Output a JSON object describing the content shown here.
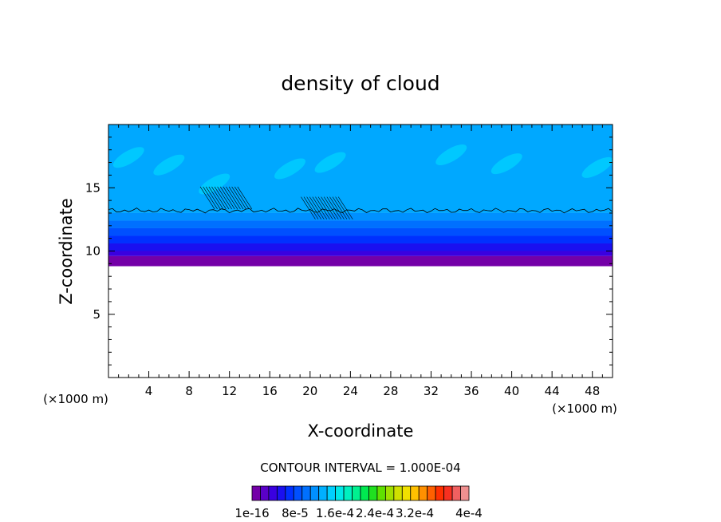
{
  "chart_data": {
    "type": "heatmap",
    "title": "density of cloud",
    "xlabel": "X-coordinate",
    "ylabel": "Z-coordinate",
    "x_unit": "(×1000 m)",
    "y_unit": "(×1000 m)",
    "xlim": [
      0,
      50
    ],
    "ylim": [
      0,
      20
    ],
    "x_ticks": [
      4,
      8,
      12,
      16,
      20,
      24,
      28,
      32,
      36,
      40,
      44,
      48
    ],
    "y_ticks": [
      5,
      10,
      15
    ],
    "contour_interval_label": "CONTOUR INTERVAL = 1.000E-04",
    "colorbar_labels": [
      "1e-16",
      "8e-5",
      "1.6e-4",
      "2.4e-4",
      "3.2e-4",
      "4e-4"
    ],
    "colorbar_colors": [
      "#7400a8",
      "#5a00c8",
      "#3a00e0",
      "#1a10f0",
      "#0030ff",
      "#0050ff",
      "#0070ff",
      "#0090ff",
      "#00b0ff",
      "#00d0ff",
      "#00e8e8",
      "#00f0c0",
      "#00f090",
      "#00e850",
      "#20e020",
      "#60e000",
      "#a0e000",
      "#d0e000",
      "#f0e000",
      "#ffc000",
      "#ff9000",
      "#ff6000",
      "#ff3000",
      "#f83020",
      "#f06060",
      "#f09090"
    ],
    "cloud_base_z": 8.8,
    "cloud_top_z": 20,
    "contour_line_z": 13.2,
    "bands": [
      {
        "z_from": 8.8,
        "z_to": 9.6,
        "color": "#7400a8"
      },
      {
        "z_from": 9.6,
        "z_to": 10.0,
        "color": "#3a00e0"
      },
      {
        "z_from": 10.0,
        "z_to": 10.6,
        "color": "#1a10f0"
      },
      {
        "z_from": 10.6,
        "z_to": 11.2,
        "color": "#0030ff"
      },
      {
        "z_from": 11.2,
        "z_to": 11.8,
        "color": "#0050ff"
      },
      {
        "z_from": 11.8,
        "z_to": 12.4,
        "color": "#0070ff"
      },
      {
        "z_from": 12.4,
        "z_to": 13.0,
        "color": "#0090ff"
      },
      {
        "z_from": 13.0,
        "z_to": 20.0,
        "color": "#00a8ff"
      }
    ],
    "grid": false,
    "legend": "bottom"
  }
}
